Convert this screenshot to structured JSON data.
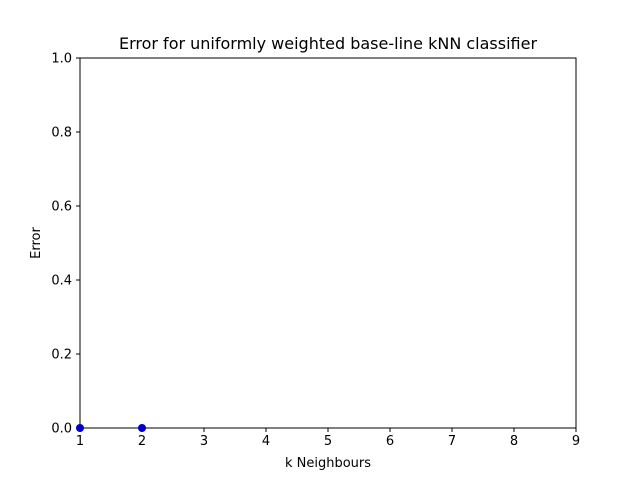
{
  "chart_data": {
    "type": "scatter",
    "title": "Error for uniformly weighted base-line kNN classifier",
    "xlabel": "k Neighbours",
    "ylabel": "Error",
    "xlim": [
      1,
      9
    ],
    "ylim": [
      0.0,
      1.0
    ],
    "xticks": [
      1,
      2,
      3,
      4,
      5,
      6,
      7,
      8,
      9
    ],
    "xtick_labels": [
      "1",
      "2",
      "3",
      "4",
      "5",
      "6",
      "7",
      "8",
      "9"
    ],
    "yticks": [
      0.0,
      0.2,
      0.4,
      0.6,
      0.8,
      1.0
    ],
    "ytick_labels": [
      "0.0",
      "0.2",
      "0.4",
      "0.6",
      "0.8",
      "1.0"
    ],
    "grid": false,
    "series": [
      {
        "x": [
          1,
          2
        ],
        "y": [
          0.0,
          0.0
        ],
        "color": "#0000cc",
        "marker": "circle"
      }
    ]
  }
}
